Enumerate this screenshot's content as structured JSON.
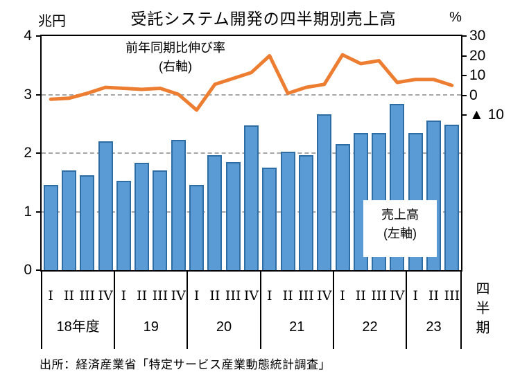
{
  "title": "受託システム開発の四半期別売上高",
  "axes": {
    "left_unit": "兆円",
    "right_unit": "%",
    "quarter_axis_label": "四半期"
  },
  "annotations": {
    "growth_line1": "前年同期比伸び率",
    "growth_line2": "(右軸)",
    "sales_line1": "売上高",
    "sales_line2": "(左軸)"
  },
  "source": "出所：経済産業省「特定サービス産業動態統計調査」",
  "chart_data": {
    "type": "combo",
    "title": "受託システム開発の四半期別売上高",
    "categories": [
      "18-I",
      "18-II",
      "18-III",
      "18-IV",
      "19-I",
      "19-II",
      "19-III",
      "19-IV",
      "20-I",
      "20-II",
      "20-III",
      "20-IV",
      "21-I",
      "21-II",
      "21-III",
      "21-IV",
      "22-I",
      "22-II",
      "22-III",
      "22-IV",
      "23-I",
      "23-II",
      "23-III"
    ],
    "year_groups": [
      {
        "label": "18年度",
        "quarters": [
          "I",
          "II",
          "III",
          "IV"
        ]
      },
      {
        "label": "19",
        "quarters": [
          "I",
          "II",
          "III",
          "IV"
        ]
      },
      {
        "label": "20",
        "quarters": [
          "I",
          "II",
          "III",
          "IV"
        ]
      },
      {
        "label": "21",
        "quarters": [
          "I",
          "II",
          "III",
          "IV"
        ]
      },
      {
        "label": "22",
        "quarters": [
          "I",
          "II",
          "III",
          "IV"
        ]
      },
      {
        "label": "23",
        "quarters": [
          "I",
          "II",
          "III"
        ]
      }
    ],
    "series": [
      {
        "name": "売上高（左軸）",
        "type": "bar",
        "axis": "left",
        "unit": "兆円",
        "values": [
          1.46,
          1.71,
          1.62,
          2.2,
          1.53,
          1.83,
          1.7,
          2.22,
          1.46,
          1.96,
          1.85,
          2.47,
          1.75,
          2.02,
          1.96,
          2.66,
          2.15,
          2.34,
          2.34,
          2.84,
          2.34,
          2.56,
          2.49
        ]
      },
      {
        "name": "前年同期比伸び率（右軸）",
        "type": "line",
        "axis": "right",
        "unit": "%",
        "values": [
          -2,
          -1.5,
          1,
          4,
          3.5,
          3,
          3.5,
          0.5,
          -7.5,
          5.5,
          8.5,
          11.5,
          20,
          1,
          4,
          5.5,
          20.5,
          16,
          17.5,
          6.5,
          8,
          8,
          5
        ]
      }
    ],
    "left_axis": {
      "unit": "兆円",
      "min": 0,
      "max": 4,
      "ticks": [
        4,
        3,
        2,
        1,
        0
      ],
      "gridlines": [
        3,
        2,
        1
      ],
      "gridline_style": "dashed"
    },
    "right_axis": {
      "unit": "%",
      "ticks": [
        30,
        20,
        10,
        0,
        -10
      ],
      "tick_labels": [
        "30",
        "20",
        "10",
        "0",
        "▲ 10"
      ],
      "zero_aligned_with_left_value": 3
    },
    "colors": {
      "bar_fill": "#5B9BD5",
      "bar_border": "#2E6DA4",
      "line": "#ED7D31",
      "gridline": "#A6A6A6"
    },
    "legend_position": "none",
    "grid": "horizontal-dashed"
  }
}
